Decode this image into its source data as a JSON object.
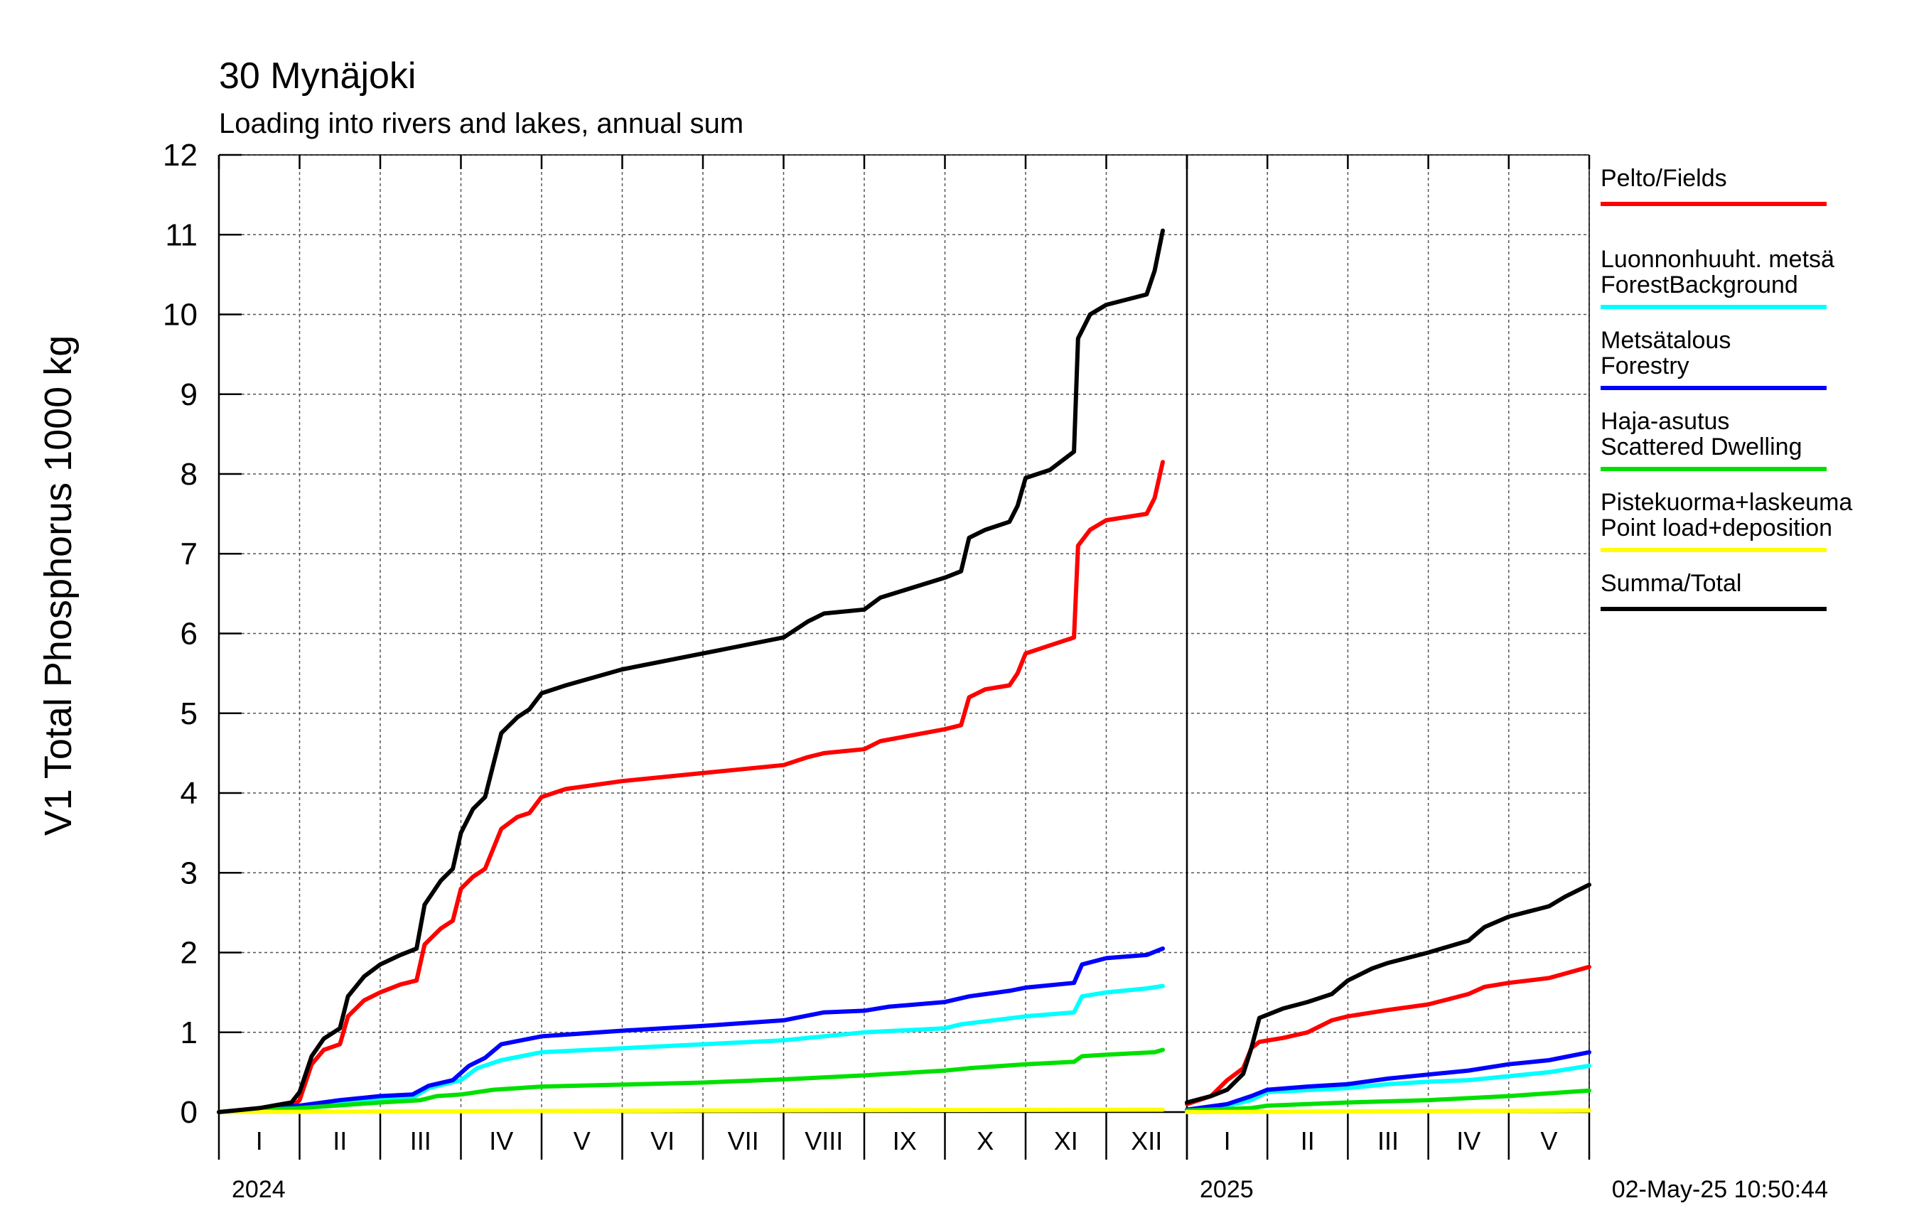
{
  "chart_data": {
    "type": "line",
    "title": "30 Mynäjoki",
    "subtitle": "Loading into rivers and lakes, annual sum",
    "ylabel": "V1 Total Phosphorus 1000 kg",
    "ylim": [
      0,
      12
    ],
    "yticks": [
      "0",
      "1",
      "2",
      "3",
      "4",
      "5",
      "6",
      "7",
      "8",
      "9",
      "10",
      "11",
      "12"
    ],
    "grid": true,
    "legend_position": "right",
    "timestamp": "02-May-25 10:50:44",
    "panels": [
      {
        "year_label": "2024",
        "x_unit": "month",
        "xlim": [
          0,
          12
        ],
        "month_labels": [
          "I",
          "II",
          "III",
          "IV",
          "V",
          "VI",
          "VII",
          "VIII",
          "IX",
          "X",
          "XI",
          "XII"
        ]
      },
      {
        "year_label": "2025",
        "x_unit": "month",
        "xlim": [
          0,
          5
        ],
        "month_labels": [
          "I",
          "II",
          "III",
          "IV",
          "V"
        ]
      }
    ],
    "series": [
      {
        "name_fi": "Pelto/Fields",
        "name_en": "",
        "color": "#ff0000",
        "panels": [
          [
            [
              0,
              0
            ],
            [
              0.5,
              0.02
            ],
            [
              0.9,
              0.06
            ],
            [
              1.0,
              0.15
            ],
            [
              1.15,
              0.6
            ],
            [
              1.3,
              0.78
            ],
            [
              1.5,
              0.85
            ],
            [
              1.6,
              1.2
            ],
            [
              1.8,
              1.4
            ],
            [
              2.0,
              1.5
            ],
            [
              2.25,
              1.6
            ],
            [
              2.45,
              1.65
            ],
            [
              2.55,
              2.1
            ],
            [
              2.75,
              2.3
            ],
            [
              2.9,
              2.4
            ],
            [
              3.0,
              2.8
            ],
            [
              3.15,
              2.95
            ],
            [
              3.3,
              3.05
            ],
            [
              3.5,
              3.55
            ],
            [
              3.7,
              3.7
            ],
            [
              3.85,
              3.75
            ],
            [
              4.0,
              3.95
            ],
            [
              4.3,
              4.05
            ],
            [
              5.0,
              4.15
            ],
            [
              6.0,
              4.25
            ],
            [
              7.0,
              4.35
            ],
            [
              7.3,
              4.45
            ],
            [
              7.5,
              4.5
            ],
            [
              8.0,
              4.55
            ],
            [
              8.2,
              4.65
            ],
            [
              9.0,
              4.8
            ],
            [
              9.2,
              4.85
            ],
            [
              9.3,
              5.2
            ],
            [
              9.5,
              5.3
            ],
            [
              9.8,
              5.35
            ],
            [
              9.9,
              5.5
            ],
            [
              10.0,
              5.75
            ],
            [
              10.3,
              5.85
            ],
            [
              10.6,
              5.95
            ],
            [
              10.65,
              7.1
            ],
            [
              10.8,
              7.3
            ],
            [
              11.0,
              7.42
            ],
            [
              11.5,
              7.5
            ],
            [
              11.6,
              7.7
            ],
            [
              11.7,
              8.15
            ]
          ],
          [
            [
              0,
              0.1
            ],
            [
              0.3,
              0.2
            ],
            [
              0.5,
              0.4
            ],
            [
              0.7,
              0.55
            ],
            [
              0.8,
              0.8
            ],
            [
              0.9,
              0.88
            ],
            [
              1.2,
              0.93
            ],
            [
              1.5,
              1.0
            ],
            [
              1.8,
              1.15
            ],
            [
              2.0,
              1.2
            ],
            [
              2.5,
              1.28
            ],
            [
              3.0,
              1.35
            ],
            [
              3.5,
              1.48
            ],
            [
              3.7,
              1.57
            ],
            [
              4.0,
              1.62
            ],
            [
              4.5,
              1.68
            ],
            [
              5.0,
              1.82
            ]
          ]
        ]
      },
      {
        "name_fi": "Luonnonhuuht. metsä",
        "name_en": "ForestBackground",
        "color": "#00ffff",
        "panels": [
          [
            [
              0,
              0
            ],
            [
              1.0,
              0.06
            ],
            [
              2.0,
              0.15
            ],
            [
              2.4,
              0.18
            ],
            [
              2.6,
              0.3
            ],
            [
              3.0,
              0.4
            ],
            [
              3.2,
              0.55
            ],
            [
              3.5,
              0.65
            ],
            [
              4.0,
              0.75
            ],
            [
              5.0,
              0.8
            ],
            [
              6.0,
              0.85
            ],
            [
              7.0,
              0.9
            ],
            [
              7.5,
              0.95
            ],
            [
              8.0,
              1.0
            ],
            [
              9.0,
              1.05
            ],
            [
              9.2,
              1.1
            ],
            [
              10.0,
              1.2
            ],
            [
              10.6,
              1.25
            ],
            [
              10.7,
              1.45
            ],
            [
              11.0,
              1.5
            ],
            [
              11.5,
              1.55
            ],
            [
              11.7,
              1.58
            ]
          ],
          [
            [
              0,
              0.02
            ],
            [
              0.5,
              0.08
            ],
            [
              0.8,
              0.15
            ],
            [
              1.0,
              0.25
            ],
            [
              2.0,
              0.3
            ],
            [
              2.5,
              0.35
            ],
            [
              3.0,
              0.38
            ],
            [
              3.5,
              0.4
            ],
            [
              4.0,
              0.45
            ],
            [
              4.5,
              0.5
            ],
            [
              5.0,
              0.58
            ]
          ]
        ]
      },
      {
        "name_fi": "Metsätalous",
        "name_en": "Forestry",
        "color": "#0000ff",
        "panels": [
          [
            [
              0,
              0
            ],
            [
              1.0,
              0.08
            ],
            [
              1.5,
              0.15
            ],
            [
              2.0,
              0.2
            ],
            [
              2.4,
              0.22
            ],
            [
              2.6,
              0.33
            ],
            [
              2.9,
              0.4
            ],
            [
              3.1,
              0.58
            ],
            [
              3.3,
              0.68
            ],
            [
              3.5,
              0.85
            ],
            [
              4.0,
              0.95
            ],
            [
              5.0,
              1.02
            ],
            [
              6.0,
              1.08
            ],
            [
              7.0,
              1.15
            ],
            [
              7.5,
              1.25
            ],
            [
              8.0,
              1.27
            ],
            [
              8.3,
              1.32
            ],
            [
              9.0,
              1.38
            ],
            [
              9.3,
              1.45
            ],
            [
              9.8,
              1.52
            ],
            [
              10.0,
              1.56
            ],
            [
              10.6,
              1.62
            ],
            [
              10.7,
              1.85
            ],
            [
              11.0,
              1.93
            ],
            [
              11.5,
              1.97
            ],
            [
              11.7,
              2.05
            ]
          ],
          [
            [
              0,
              0.03
            ],
            [
              0.5,
              0.1
            ],
            [
              0.8,
              0.2
            ],
            [
              1.0,
              0.28
            ],
            [
              1.5,
              0.32
            ],
            [
              2.0,
              0.35
            ],
            [
              2.5,
              0.42
            ],
            [
              3.0,
              0.47
            ],
            [
              3.5,
              0.52
            ],
            [
              4.0,
              0.6
            ],
            [
              4.5,
              0.65
            ],
            [
              5.0,
              0.75
            ]
          ]
        ]
      },
      {
        "name_fi": "Haja-asutus",
        "name_en": "Scattered Dwelling",
        "color": "#00e000",
        "panels": [
          [
            [
              0,
              0
            ],
            [
              1.0,
              0.05
            ],
            [
              2.0,
              0.12
            ],
            [
              2.5,
              0.15
            ],
            [
              2.7,
              0.2
            ],
            [
              3.0,
              0.22
            ],
            [
              3.4,
              0.28
            ],
            [
              4.0,
              0.32
            ],
            [
              6.0,
              0.37
            ],
            [
              7.0,
              0.41
            ],
            [
              8.0,
              0.46
            ],
            [
              9.0,
              0.52
            ],
            [
              9.3,
              0.55
            ],
            [
              10.0,
              0.6
            ],
            [
              10.6,
              0.63
            ],
            [
              10.7,
              0.7
            ],
            [
              11.0,
              0.72
            ],
            [
              11.6,
              0.75
            ],
            [
              11.7,
              0.78
            ]
          ],
          [
            [
              0,
              0.02
            ],
            [
              0.8,
              0.05
            ],
            [
              1.0,
              0.08
            ],
            [
              2.0,
              0.12
            ],
            [
              3.0,
              0.15
            ],
            [
              4.0,
              0.2
            ],
            [
              5.0,
              0.27
            ]
          ]
        ]
      },
      {
        "name_fi": "Pistekuorma+laskeuma",
        "name_en": "Point load+deposition",
        "color": "#ffff00",
        "panels": [
          [
            [
              0,
              0
            ],
            [
              3.0,
              0.01
            ],
            [
              6.0,
              0.02
            ],
            [
              11.7,
              0.03
            ]
          ],
          [
            [
              0,
              0.0
            ],
            [
              2.5,
              0.01
            ],
            [
              5.0,
              0.02
            ]
          ]
        ]
      },
      {
        "name_fi": "Summa/Total",
        "name_en": "",
        "color": "#000000",
        "panels": [
          [
            [
              0,
              0
            ],
            [
              0.5,
              0.05
            ],
            [
              0.9,
              0.12
            ],
            [
              1.0,
              0.25
            ],
            [
              1.15,
              0.7
            ],
            [
              1.3,
              0.92
            ],
            [
              1.5,
              1.05
            ],
            [
              1.6,
              1.45
            ],
            [
              1.8,
              1.7
            ],
            [
              2.0,
              1.85
            ],
            [
              2.25,
              1.97
            ],
            [
              2.45,
              2.05
            ],
            [
              2.55,
              2.6
            ],
            [
              2.75,
              2.9
            ],
            [
              2.9,
              3.05
            ],
            [
              3.0,
              3.5
            ],
            [
              3.15,
              3.8
            ],
            [
              3.3,
              3.95
            ],
            [
              3.5,
              4.75
            ],
            [
              3.7,
              4.95
            ],
            [
              3.85,
              5.05
            ],
            [
              4.0,
              5.25
            ],
            [
              4.3,
              5.35
            ],
            [
              5.0,
              5.55
            ],
            [
              6.0,
              5.75
            ],
            [
              7.0,
              5.95
            ],
            [
              7.3,
              6.15
            ],
            [
              7.5,
              6.25
            ],
            [
              8.0,
              6.3
            ],
            [
              8.2,
              6.45
            ],
            [
              9.0,
              6.7
            ],
            [
              9.2,
              6.78
            ],
            [
              9.3,
              7.2
            ],
            [
              9.5,
              7.3
            ],
            [
              9.8,
              7.4
            ],
            [
              9.9,
              7.6
            ],
            [
              10.0,
              7.95
            ],
            [
              10.3,
              8.05
            ],
            [
              10.6,
              8.28
            ],
            [
              10.65,
              9.7
            ],
            [
              10.8,
              10.0
            ],
            [
              11.0,
              10.12
            ],
            [
              11.5,
              10.25
            ],
            [
              11.6,
              10.55
            ],
            [
              11.7,
              11.05
            ]
          ],
          [
            [
              0,
              0.12
            ],
            [
              0.3,
              0.2
            ],
            [
              0.5,
              0.28
            ],
            [
              0.7,
              0.48
            ],
            [
              0.8,
              0.8
            ],
            [
              0.9,
              1.18
            ],
            [
              1.2,
              1.3
            ],
            [
              1.5,
              1.38
            ],
            [
              1.8,
              1.48
            ],
            [
              2.0,
              1.65
            ],
            [
              2.3,
              1.8
            ],
            [
              2.5,
              1.87
            ],
            [
              3.0,
              2.0
            ],
            [
              3.5,
              2.15
            ],
            [
              3.7,
              2.32
            ],
            [
              4.0,
              2.45
            ],
            [
              4.5,
              2.58
            ],
            [
              4.7,
              2.7
            ],
            [
              5.0,
              2.85
            ]
          ]
        ]
      }
    ]
  }
}
